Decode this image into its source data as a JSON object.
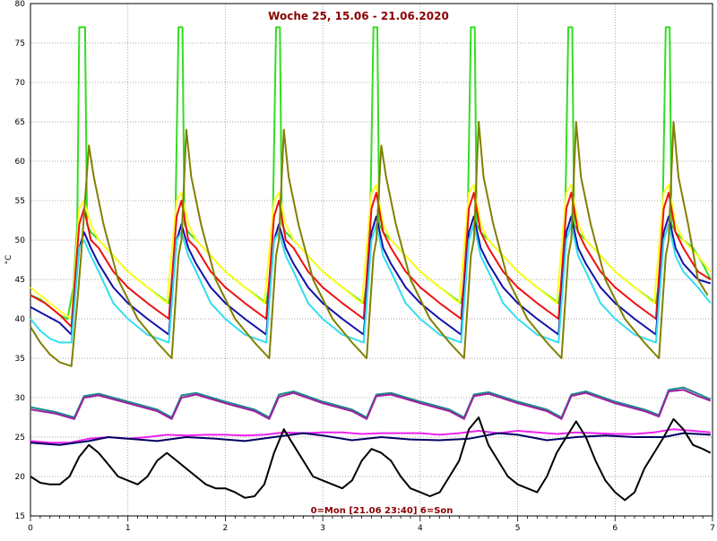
{
  "chart_data": {
    "type": "line",
    "title": "Woche 25, 15.06 - 21.06.2020",
    "xlabel": "0=Mon [21.06 23:40] 6=Son",
    "ylabel": "°C",
    "xlim": [
      0,
      7
    ],
    "ylim": [
      15,
      80
    ],
    "x_ticks": [
      0,
      1,
      2,
      3,
      4,
      5,
      6,
      7
    ],
    "y_ticks": [
      15,
      20,
      25,
      30,
      35,
      40,
      45,
      50,
      55,
      60,
      65,
      70,
      75,
      80
    ],
    "grid": true,
    "series": [
      {
        "color": "#33dd22",
        "x": [
          0,
          0.1,
          0.2,
          0.3,
          0.38,
          0.44,
          0.48,
          0.5,
          0.56,
          0.58,
          0.62,
          0.7,
          0.85,
          1,
          1.2,
          1.42,
          1.48,
          1.52,
          1.56,
          1.58,
          1.62,
          1.7,
          1.85,
          2,
          2.2,
          2.42,
          2.48,
          2.52,
          2.56,
          2.58,
          2.62,
          2.7,
          2.85,
          3,
          3.2,
          3.42,
          3.48,
          3.52,
          3.56,
          3.58,
          3.62,
          3.7,
          3.85,
          4,
          4.2,
          4.42,
          4.48,
          4.52,
          4.56,
          4.58,
          4.62,
          4.7,
          4.85,
          5,
          5.2,
          5.42,
          5.48,
          5.52,
          5.56,
          5.58,
          5.62,
          5.7,
          5.85,
          6,
          6.2,
          6.42,
          6.48,
          6.52,
          6.56,
          6.58,
          6.62,
          6.7,
          6.8,
          6.9,
          6.98
        ],
        "values": [
          43,
          42.5,
          41.5,
          40.5,
          40,
          44,
          52,
          77,
          77,
          52,
          51,
          50,
          48,
          46,
          44,
          42,
          47,
          77,
          77,
          52,
          51,
          50,
          48,
          46,
          44,
          42,
          47,
          77,
          77,
          52,
          51,
          50,
          48,
          46,
          44,
          42,
          47,
          77,
          77,
          52,
          51,
          50,
          48,
          46,
          44,
          42,
          47,
          77,
          77,
          52,
          51,
          50,
          48,
          46,
          44,
          42,
          47,
          77,
          77,
          52,
          51,
          50,
          48,
          46,
          44,
          42,
          47,
          77,
          77,
          52,
          51,
          50,
          49,
          47,
          45
        ]
      },
      {
        "color": "#ffff22",
        "x": [
          0,
          0.1,
          0.2,
          0.3,
          0.42,
          0.5,
          0.55,
          0.62,
          0.7,
          0.85,
          1,
          1.2,
          1.4,
          1.5,
          1.55,
          1.62,
          1.7,
          1.85,
          2,
          2.2,
          2.4,
          2.5,
          2.55,
          2.62,
          2.7,
          2.85,
          3,
          3.2,
          3.4,
          3.5,
          3.55,
          3.62,
          3.7,
          3.85,
          4,
          4.2,
          4.4,
          4.5,
          4.55,
          4.62,
          4.7,
          4.85,
          5,
          5.2,
          5.4,
          5.5,
          5.55,
          5.62,
          5.7,
          5.85,
          6,
          6.2,
          6.4,
          6.5,
          6.55,
          6.62,
          6.7,
          6.85,
          6.98
        ],
        "values": [
          44,
          43,
          42,
          41,
          40,
          54,
          55,
          52,
          50,
          48,
          46,
          44,
          42,
          55,
          56,
          52,
          50,
          48,
          46,
          44,
          42,
          55,
          56,
          52,
          50,
          48,
          46,
          44,
          42,
          56,
          57,
          52,
          50,
          48,
          46,
          44,
          42,
          56,
          57,
          52,
          50,
          48,
          46,
          44,
          42,
          56,
          57,
          52,
          50,
          48,
          46,
          44,
          42,
          56,
          57,
          52,
          50,
          48,
          46
        ]
      },
      {
        "color": "#ee1111",
        "x": [
          0,
          0.15,
          0.3,
          0.42,
          0.5,
          0.55,
          0.62,
          0.7,
          0.85,
          1,
          1.2,
          1.42,
          1.5,
          1.55,
          1.62,
          1.7,
          1.85,
          2,
          2.2,
          2.42,
          2.5,
          2.55,
          2.62,
          2.7,
          2.85,
          3,
          3.2,
          3.42,
          3.5,
          3.55,
          3.62,
          3.7,
          3.85,
          4,
          4.2,
          4.42,
          4.5,
          4.55,
          4.62,
          4.7,
          4.85,
          5,
          5.2,
          5.42,
          5.5,
          5.55,
          5.62,
          5.7,
          5.85,
          6,
          6.2,
          6.42,
          6.5,
          6.55,
          6.62,
          6.7,
          6.85,
          6.98
        ],
        "values": [
          43,
          42,
          40.5,
          39,
          52,
          54,
          50,
          49,
          46,
          44,
          42,
          40,
          53,
          55,
          50,
          49,
          46,
          44,
          42,
          40,
          53,
          55,
          50,
          49,
          46,
          44,
          42,
          40,
          54,
          56,
          51,
          49,
          46,
          44,
          42,
          40,
          54,
          56,
          51,
          49,
          46,
          44,
          42,
          40,
          54,
          56,
          51,
          49,
          46,
          44,
          42,
          40,
          54,
          56,
          51,
          49,
          46,
          45
        ]
      },
      {
        "color": "#1111aa",
        "x": [
          0,
          0.15,
          0.3,
          0.42,
          0.5,
          0.55,
          0.62,
          0.7,
          0.85,
          1,
          1.2,
          1.42,
          1.5,
          1.55,
          1.62,
          1.7,
          1.85,
          2,
          2.2,
          2.42,
          2.5,
          2.55,
          2.62,
          2.7,
          2.85,
          3,
          3.2,
          3.42,
          3.5,
          3.55,
          3.62,
          3.7,
          3.85,
          4,
          4.2,
          4.42,
          4.5,
          4.55,
          4.62,
          4.7,
          4.85,
          5,
          5.2,
          5.42,
          5.5,
          5.55,
          5.62,
          5.7,
          5.85,
          6,
          6.2,
          6.42,
          6.5,
          6.55,
          6.62,
          6.7,
          6.85,
          6.98
        ],
        "values": [
          41.5,
          40.5,
          39.5,
          38,
          49,
          51,
          49,
          47,
          44,
          42,
          40,
          38,
          50,
          52,
          49,
          47,
          44,
          42,
          40,
          38,
          50,
          52,
          49,
          47,
          44,
          42,
          40,
          38,
          51,
          53,
          49,
          47,
          44,
          42,
          40,
          38,
          51,
          53,
          49,
          47,
          44,
          42,
          40,
          38,
          51,
          53,
          49,
          47,
          44,
          42,
          40,
          38,
          51,
          53,
          49,
          47,
          45,
          44.5
        ]
      },
      {
        "color": "#33ddee",
        "x": [
          0,
          0.1,
          0.2,
          0.3,
          0.42,
          0.5,
          0.55,
          0.62,
          0.7,
          0.85,
          1,
          1.2,
          1.42,
          1.5,
          1.55,
          1.62,
          1.7,
          1.85,
          2,
          2.2,
          2.42,
          2.5,
          2.55,
          2.62,
          2.7,
          2.85,
          3,
          3.2,
          3.42,
          3.5,
          3.55,
          3.62,
          3.7,
          3.85,
          4,
          4.2,
          4.42,
          4.5,
          4.55,
          4.62,
          4.7,
          4.85,
          5,
          5.2,
          5.42,
          5.5,
          5.55,
          5.62,
          5.7,
          5.85,
          6,
          6.2,
          6.42,
          6.5,
          6.55,
          6.62,
          6.7,
          6.85,
          6.98
        ],
        "values": [
          40,
          38.5,
          37.5,
          37,
          37,
          49,
          50,
          48,
          46,
          42,
          40,
          38,
          37,
          50,
          51,
          48,
          46,
          42,
          40,
          38,
          37,
          50,
          51,
          48,
          46,
          42,
          40,
          38,
          37,
          50,
          52,
          48,
          46,
          42,
          40,
          38,
          37,
          50,
          52,
          48,
          46,
          42,
          40,
          38,
          37,
          50,
          52,
          48,
          46,
          42,
          40,
          38,
          37,
          50,
          52,
          48,
          46,
          44,
          42
        ]
      },
      {
        "color": "#808000",
        "x": [
          0,
          0.1,
          0.2,
          0.3,
          0.42,
          0.48,
          0.52,
          0.6,
          0.65,
          0.75,
          0.9,
          1.1,
          1.3,
          1.45,
          1.52,
          1.55,
          1.6,
          1.65,
          1.75,
          1.9,
          2.1,
          2.3,
          2.45,
          2.52,
          2.55,
          2.6,
          2.65,
          2.75,
          2.9,
          3.1,
          3.3,
          3.45,
          3.52,
          3.55,
          3.6,
          3.65,
          3.75,
          3.9,
          4.1,
          4.3,
          4.45,
          4.52,
          4.55,
          4.6,
          4.65,
          4.75,
          4.9,
          5.1,
          5.3,
          5.45,
          5.52,
          5.55,
          5.6,
          5.65,
          5.75,
          5.9,
          6.1,
          6.3,
          6.45,
          6.52,
          6.55,
          6.6,
          6.65,
          6.75,
          6.85,
          6.95
        ],
        "values": [
          39,
          37,
          35.5,
          34.5,
          34,
          42,
          48,
          62,
          58,
          52,
          45,
          40,
          37,
          35,
          48,
          50,
          64,
          58,
          52,
          45,
          40,
          37,
          35,
          48,
          50,
          64,
          58,
          52,
          45,
          40,
          37,
          35,
          48,
          50,
          62,
          58,
          52,
          45,
          40,
          37,
          35,
          48,
          50,
          65,
          58,
          52,
          45,
          40,
          37,
          35,
          48,
          50,
          65,
          58,
          52,
          45,
          40,
          37,
          35,
          48,
          50,
          65,
          58,
          52,
          45,
          43
        ]
      },
      {
        "color": "#1a8a8a",
        "x": [
          0,
          0.25,
          0.45,
          0.55,
          0.7,
          1,
          1.3,
          1.45,
          1.55,
          1.7,
          2,
          2.3,
          2.45,
          2.55,
          2.7,
          3,
          3.3,
          3.45,
          3.55,
          3.7,
          4,
          4.3,
          4.45,
          4.55,
          4.7,
          5,
          5.3,
          5.45,
          5.55,
          5.7,
          6,
          6.3,
          6.45,
          6.55,
          6.7,
          6.85,
          6.98
        ],
        "values": [
          28.8,
          28.2,
          27.5,
          30.2,
          30.5,
          29.5,
          28.5,
          27.5,
          30.3,
          30.6,
          29.5,
          28.5,
          27.5,
          30.4,
          30.8,
          29.5,
          28.5,
          27.5,
          30.4,
          30.6,
          29.5,
          28.5,
          27.5,
          30.4,
          30.7,
          29.5,
          28.5,
          27.5,
          30.4,
          30.8,
          29.5,
          28.5,
          27.8,
          31,
          31.3,
          30.5,
          29.8
        ]
      },
      {
        "color": "#a020a0",
        "x": [
          0,
          0.25,
          0.45,
          0.55,
          0.7,
          1,
          1.3,
          1.45,
          1.55,
          1.7,
          2,
          2.3,
          2.45,
          2.55,
          2.7,
          3,
          3.3,
          3.45,
          3.55,
          3.7,
          4,
          4.3,
          4.45,
          4.55,
          4.7,
          5,
          5.3,
          5.45,
          5.55,
          5.7,
          6,
          6.3,
          6.45,
          6.55,
          6.7,
          6.85,
          6.98
        ],
        "values": [
          28.5,
          28,
          27.3,
          30,
          30.3,
          29.3,
          28.3,
          27.3,
          30,
          30.4,
          29.3,
          28.3,
          27.3,
          30.1,
          30.6,
          29.3,
          28.3,
          27.3,
          30.2,
          30.4,
          29.3,
          28.3,
          27.3,
          30.2,
          30.5,
          29.3,
          28.3,
          27.3,
          30.2,
          30.6,
          29.3,
          28.3,
          27.6,
          30.8,
          31,
          30.2,
          29.6
        ]
      },
      {
        "color": "#ee22ee",
        "x": [
          0,
          0.2,
          0.4,
          0.6,
          0.8,
          1,
          1.2,
          1.4,
          1.6,
          1.8,
          2,
          2.2,
          2.4,
          2.6,
          2.8,
          3,
          3.2,
          3.4,
          3.6,
          3.8,
          4,
          4.2,
          4.4,
          4.6,
          4.8,
          5,
          5.2,
          5.4,
          5.6,
          5.8,
          6,
          6.2,
          6.4,
          6.6,
          6.8,
          6.98
        ],
        "values": [
          24.5,
          24.3,
          24.3,
          24.8,
          25,
          24.8,
          25,
          25.3,
          25.2,
          25.3,
          25.3,
          25.2,
          25.3,
          25.6,
          25.5,
          25.6,
          25.6,
          25.4,
          25.5,
          25.5,
          25.5,
          25.3,
          25.5,
          25.8,
          25.5,
          25.8,
          25.6,
          25.4,
          25.6,
          25.5,
          25.4,
          25.4,
          25.6,
          26,
          25.8,
          25.6
        ]
      },
      {
        "color": "#000060",
        "x": [
          0,
          0.3,
          0.6,
          0.8,
          1,
          1.3,
          1.6,
          1.9,
          2.2,
          2.5,
          2.8,
          3,
          3.3,
          3.6,
          3.9,
          4.2,
          4.5,
          4.8,
          5,
          5.3,
          5.6,
          5.9,
          6.2,
          6.5,
          6.7,
          6.98
        ],
        "values": [
          24.3,
          24,
          24.5,
          25,
          24.8,
          24.5,
          25,
          24.8,
          24.5,
          25,
          25.5,
          25.2,
          24.6,
          25,
          24.7,
          24.6,
          24.8,
          25.5,
          25.3,
          24.6,
          25,
          25.2,
          25,
          25,
          25.5,
          25.3
        ]
      },
      {
        "color": "#000000",
        "x": [
          0,
          0.1,
          0.2,
          0.3,
          0.4,
          0.5,
          0.6,
          0.7,
          0.8,
          0.9,
          1,
          1.1,
          1.2,
          1.3,
          1.4,
          1.5,
          1.6,
          1.7,
          1.8,
          1.9,
          2,
          2.1,
          2.2,
          2.3,
          2.4,
          2.5,
          2.6,
          2.7,
          2.8,
          2.9,
          3,
          3.1,
          3.2,
          3.3,
          3.4,
          3.5,
          3.6,
          3.7,
          3.8,
          3.9,
          4,
          4.1,
          4.2,
          4.3,
          4.4,
          4.5,
          4.6,
          4.7,
          4.8,
          4.9,
          5,
          5.1,
          5.2,
          5.3,
          5.4,
          5.5,
          5.6,
          5.7,
          5.8,
          5.9,
          6,
          6.1,
          6.2,
          6.3,
          6.4,
          6.5,
          6.6,
          6.7,
          6.8,
          6.9,
          6.98
        ],
        "values": [
          20,
          19.2,
          19,
          19,
          20,
          22.5,
          24,
          23,
          21.5,
          20,
          19.5,
          19,
          20,
          22,
          23,
          22,
          21,
          20,
          19,
          18.5,
          18.5,
          18,
          17.3,
          17.5,
          19,
          23,
          26,
          24,
          22,
          20,
          19.5,
          19,
          18.5,
          19.5,
          22,
          23.5,
          23,
          22,
          20,
          18.5,
          18,
          17.5,
          18,
          20,
          22,
          26,
          27.5,
          24,
          22,
          20,
          19,
          18.5,
          18,
          20,
          23,
          25,
          27,
          25,
          22,
          19.5,
          18,
          17,
          18,
          21,
          23,
          25,
          27.3,
          26,
          24,
          23.5,
          23
        ]
      }
    ]
  }
}
